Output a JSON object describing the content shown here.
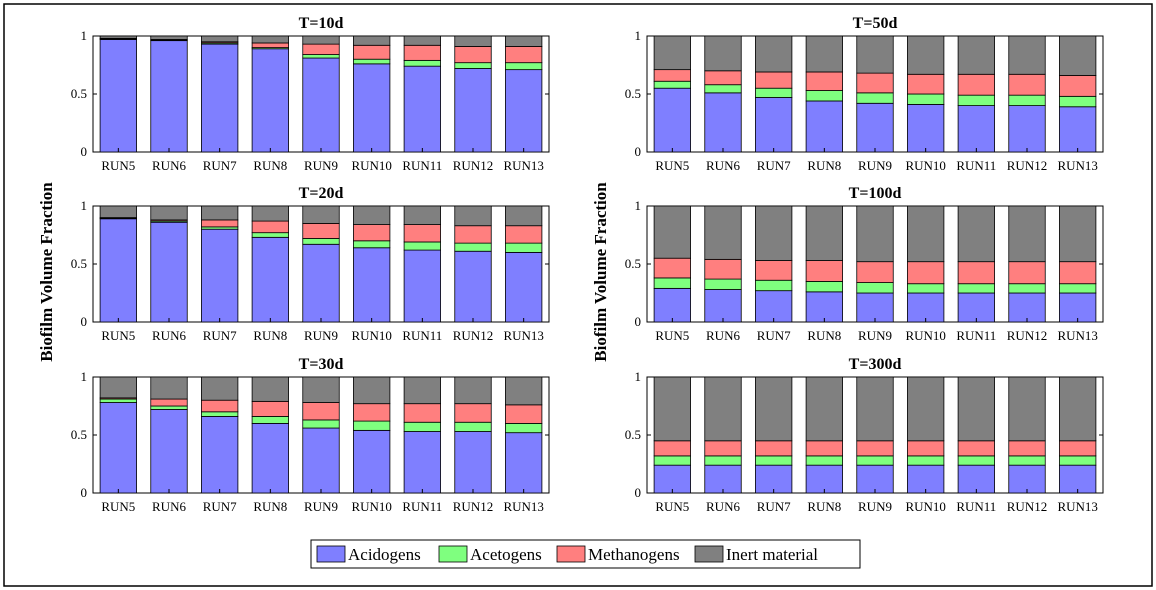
{
  "figure": {
    "ylabel": "Biofilm Volume Fraction",
    "colors": {
      "Acidogens": "#7f7fff",
      "Acetogens": "#7fff7f",
      "Methanogens": "#ff7f7f",
      "Inert material": "#808080"
    }
  },
  "legend": {
    "items": [
      "Acidogens",
      "Acetogens",
      "Methanogens",
      "Inert material"
    ]
  },
  "chart_data": [
    {
      "type": "bar",
      "stacked": true,
      "title": "T=10d",
      "ylim": [
        0,
        1
      ],
      "yticks": [
        0,
        0.5,
        1
      ],
      "categories": [
        "RUN5",
        "RUN6",
        "RUN7",
        "RUN8",
        "RUN9",
        "RUN10",
        "RUN11",
        "RUN12",
        "RUN13"
      ],
      "series": [
        {
          "name": "Acidogens",
          "values": [
            0.97,
            0.96,
            0.93,
            0.89,
            0.81,
            0.76,
            0.74,
            0.72,
            0.71
          ]
        },
        {
          "name": "Acetogens",
          "values": [
            0.005,
            0.005,
            0.01,
            0.01,
            0.03,
            0.04,
            0.05,
            0.05,
            0.06
          ]
        },
        {
          "name": "Methanogens",
          "values": [
            0.005,
            0.005,
            0.01,
            0.04,
            0.09,
            0.12,
            0.13,
            0.14,
            0.14
          ]
        },
        {
          "name": "Inert material",
          "values": [
            0.02,
            0.03,
            0.05,
            0.06,
            0.07,
            0.08,
            0.08,
            0.09,
            0.09
          ]
        }
      ]
    },
    {
      "type": "bar",
      "stacked": true,
      "title": "T=50d",
      "ylim": [
        0,
        1
      ],
      "yticks": [
        0,
        0.5,
        1
      ],
      "categories": [
        "RUN5",
        "RUN6",
        "RUN7",
        "RUN8",
        "RUN9",
        "RUN10",
        "RUN11",
        "RUN12",
        "RUN13"
      ],
      "series": [
        {
          "name": "Acidogens",
          "values": [
            0.55,
            0.51,
            0.47,
            0.44,
            0.42,
            0.41,
            0.4,
            0.4,
            0.39
          ]
        },
        {
          "name": "Acetogens",
          "values": [
            0.06,
            0.07,
            0.08,
            0.09,
            0.09,
            0.09,
            0.09,
            0.09,
            0.09
          ]
        },
        {
          "name": "Methanogens",
          "values": [
            0.1,
            0.12,
            0.14,
            0.16,
            0.17,
            0.17,
            0.18,
            0.18,
            0.18
          ]
        },
        {
          "name": "Inert material",
          "values": [
            0.29,
            0.3,
            0.31,
            0.31,
            0.32,
            0.33,
            0.33,
            0.33,
            0.34
          ]
        }
      ]
    },
    {
      "type": "bar",
      "stacked": true,
      "title": "T=20d",
      "ylim": [
        0,
        1
      ],
      "yticks": [
        0,
        0.5,
        1
      ],
      "categories": [
        "RUN5",
        "RUN6",
        "RUN7",
        "RUN8",
        "RUN9",
        "RUN10",
        "RUN11",
        "RUN12",
        "RUN13"
      ],
      "series": [
        {
          "name": "Acidogens",
          "values": [
            0.89,
            0.86,
            0.8,
            0.73,
            0.67,
            0.64,
            0.62,
            0.61,
            0.6
          ]
        },
        {
          "name": "Acetogens",
          "values": [
            0.005,
            0.01,
            0.02,
            0.04,
            0.05,
            0.06,
            0.07,
            0.07,
            0.08
          ]
        },
        {
          "name": "Methanogens",
          "values": [
            0.005,
            0.01,
            0.06,
            0.1,
            0.13,
            0.14,
            0.15,
            0.15,
            0.15
          ]
        },
        {
          "name": "Inert material",
          "values": [
            0.1,
            0.12,
            0.12,
            0.13,
            0.15,
            0.16,
            0.16,
            0.17,
            0.17
          ]
        }
      ]
    },
    {
      "type": "bar",
      "stacked": true,
      "title": "T=100d",
      "ylim": [
        0,
        1
      ],
      "yticks": [
        0,
        0.5,
        1
      ],
      "categories": [
        "RUN5",
        "RUN6",
        "RUN7",
        "RUN8",
        "RUN9",
        "RUN10",
        "RUN11",
        "RUN12",
        "RUN13"
      ],
      "series": [
        {
          "name": "Acidogens",
          "values": [
            0.29,
            0.28,
            0.27,
            0.26,
            0.25,
            0.25,
            0.25,
            0.25,
            0.25
          ]
        },
        {
          "name": "Acetogens",
          "values": [
            0.09,
            0.09,
            0.09,
            0.09,
            0.09,
            0.08,
            0.08,
            0.08,
            0.08
          ]
        },
        {
          "name": "Methanogens",
          "values": [
            0.17,
            0.17,
            0.17,
            0.18,
            0.18,
            0.19,
            0.19,
            0.19,
            0.19
          ]
        },
        {
          "name": "Inert material",
          "values": [
            0.45,
            0.46,
            0.47,
            0.47,
            0.48,
            0.48,
            0.48,
            0.48,
            0.48
          ]
        }
      ]
    },
    {
      "type": "bar",
      "stacked": true,
      "title": "T=30d",
      "ylim": [
        0,
        1
      ],
      "yticks": [
        0,
        0.5,
        1
      ],
      "categories": [
        "RUN5",
        "RUN6",
        "RUN7",
        "RUN8",
        "RUN9",
        "RUN10",
        "RUN11",
        "RUN12",
        "RUN13"
      ],
      "series": [
        {
          "name": "Acidogens",
          "values": [
            0.78,
            0.72,
            0.66,
            0.6,
            0.56,
            0.54,
            0.53,
            0.53,
            0.52
          ]
        },
        {
          "name": "Acetogens",
          "values": [
            0.03,
            0.03,
            0.04,
            0.06,
            0.07,
            0.08,
            0.08,
            0.08,
            0.08
          ]
        },
        {
          "name": "Methanogens",
          "values": [
            0.01,
            0.06,
            0.1,
            0.13,
            0.15,
            0.15,
            0.16,
            0.16,
            0.16
          ]
        },
        {
          "name": "Inert material",
          "values": [
            0.18,
            0.19,
            0.2,
            0.21,
            0.22,
            0.23,
            0.23,
            0.23,
            0.24
          ]
        }
      ]
    },
    {
      "type": "bar",
      "stacked": true,
      "title": "T=300d",
      "ylim": [
        0,
        1
      ],
      "yticks": [
        0,
        0.5,
        1
      ],
      "categories": [
        "RUN5",
        "RUN6",
        "RUN7",
        "RUN8",
        "RUN9",
        "RUN10",
        "RUN11",
        "RUN12",
        "RUN13"
      ],
      "series": [
        {
          "name": "Acidogens",
          "values": [
            0.24,
            0.24,
            0.24,
            0.24,
            0.24,
            0.24,
            0.24,
            0.24,
            0.24
          ]
        },
        {
          "name": "Acetogens",
          "values": [
            0.08,
            0.08,
            0.08,
            0.08,
            0.08,
            0.08,
            0.08,
            0.08,
            0.08
          ]
        },
        {
          "name": "Methanogens",
          "values": [
            0.13,
            0.13,
            0.13,
            0.13,
            0.13,
            0.13,
            0.13,
            0.13,
            0.13
          ]
        },
        {
          "name": "Inert material",
          "values": [
            0.55,
            0.55,
            0.55,
            0.55,
            0.55,
            0.55,
            0.55,
            0.55,
            0.55
          ]
        }
      ]
    }
  ]
}
